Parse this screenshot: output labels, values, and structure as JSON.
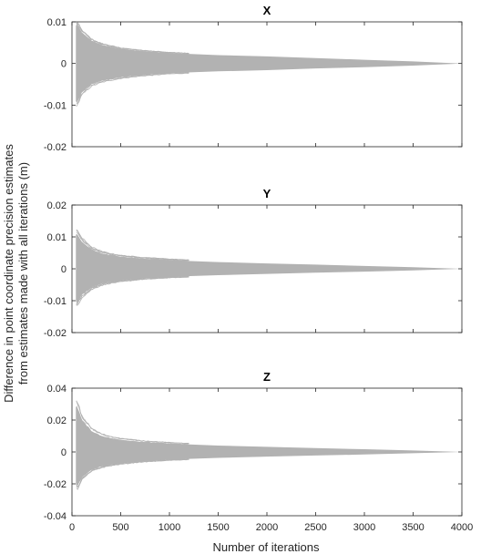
{
  "figure": {
    "ylabel_line1": "Difference in point coordinate precision estimates",
    "ylabel_line2": "from estimates made with all iterations (m)",
    "xlabel": "Number of iterations"
  },
  "colors": {
    "envelope": "#b2b2b2",
    "axes": "#262626",
    "background": "#ffffff"
  },
  "chart_data": [
    {
      "type": "line",
      "title": "X",
      "xlim": [
        0,
        4000
      ],
      "ylim": [
        -0.02,
        0.01
      ],
      "yticks": [
        -0.02,
        -0.01,
        0,
        0.01
      ],
      "ytick_labels": [
        "-0.02",
        "-0.01",
        "0",
        "0.01"
      ],
      "xticks": [
        0,
        500,
        1000,
        1500,
        2000,
        2500,
        3000,
        3500,
        4000
      ],
      "xtick_labels": [
        "",
        "",
        "",
        "",
        "",
        "",
        "",
        "",
        ""
      ],
      "grid": false,
      "series_description": "many overlapping gray traces converging to 0",
      "envelope": {
        "x": [
          40,
          50,
          100,
          200,
          300,
          400,
          500,
          700,
          1000,
          1500,
          2000,
          2500,
          3000,
          3500,
          4000
        ],
        "upper": [
          0.009,
          0.0095,
          0.0075,
          0.0055,
          0.0045,
          0.004,
          0.0035,
          0.003,
          0.0025,
          0.002,
          0.0017,
          0.0013,
          0.0009,
          0.0005,
          0
        ],
        "lower": [
          -0.009,
          -0.0095,
          -0.007,
          -0.005,
          -0.0042,
          -0.0037,
          -0.0033,
          -0.0028,
          -0.0023,
          -0.0019,
          -0.0016,
          -0.0012,
          -0.0009,
          -0.0005,
          0
        ]
      }
    },
    {
      "type": "line",
      "title": "Y",
      "xlim": [
        0,
        4000
      ],
      "ylim": [
        -0.02,
        0.02
      ],
      "yticks": [
        -0.02,
        -0.01,
        0,
        0.01,
        0.02
      ],
      "ytick_labels": [
        "-0.02",
        "-0.01",
        "0",
        "0.01",
        "0.02"
      ],
      "xticks": [
        0,
        500,
        1000,
        1500,
        2000,
        2500,
        3000,
        3500,
        4000
      ],
      "xtick_labels": [
        "",
        "",
        "",
        "",
        "",
        "",
        "",
        "",
        ""
      ],
      "grid": false,
      "series_description": "many overlapping gray traces converging to 0",
      "envelope": {
        "x": [
          40,
          50,
          100,
          200,
          300,
          400,
          500,
          700,
          1000,
          1500,
          2000,
          2500,
          3000,
          3500,
          4000
        ],
        "upper": [
          0.0105,
          0.011,
          0.0085,
          0.006,
          0.0048,
          0.0042,
          0.0037,
          0.0032,
          0.0027,
          0.0021,
          0.0017,
          0.0013,
          0.0009,
          0.0005,
          0
        ],
        "lower": [
          -0.01,
          -0.0105,
          -0.008,
          -0.0058,
          -0.0046,
          -0.004,
          -0.0036,
          -0.003,
          -0.0025,
          -0.002,
          -0.0016,
          -0.0012,
          -0.0009,
          -0.0005,
          0
        ]
      }
    },
    {
      "type": "line",
      "title": "Z",
      "xlim": [
        0,
        4000
      ],
      "ylim": [
        -0.04,
        0.04
      ],
      "yticks": [
        -0.04,
        -0.02,
        0,
        0.02,
        0.04
      ],
      "ytick_labels": [
        "-0.04",
        "-0.02",
        "0",
        "0.02",
        "0.04"
      ],
      "xticks": [
        0,
        500,
        1000,
        1500,
        2000,
        2500,
        3000,
        3500,
        4000
      ],
      "xtick_labels": [
        "0",
        "500",
        "1000",
        "1500",
        "2000",
        "2500",
        "3000",
        "3500",
        "4000"
      ],
      "xlabel": "Number of iterations",
      "grid": false,
      "series_description": "many overlapping gray traces converging to 0",
      "envelope": {
        "x": [
          40,
          50,
          100,
          200,
          300,
          400,
          500,
          700,
          1000,
          1500,
          2000,
          2500,
          3000,
          3500,
          4000
        ],
        "upper": [
          0.028,
          0.029,
          0.02,
          0.013,
          0.01,
          0.0085,
          0.0075,
          0.0063,
          0.0052,
          0.004,
          0.0032,
          0.0024,
          0.0017,
          0.0009,
          0
        ],
        "lower": [
          -0.02,
          -0.022,
          -0.016,
          -0.011,
          -0.009,
          -0.0078,
          -0.007,
          -0.0058,
          -0.0048,
          -0.0037,
          -0.0029,
          -0.0022,
          -0.0016,
          -0.0008,
          0
        ]
      }
    }
  ]
}
